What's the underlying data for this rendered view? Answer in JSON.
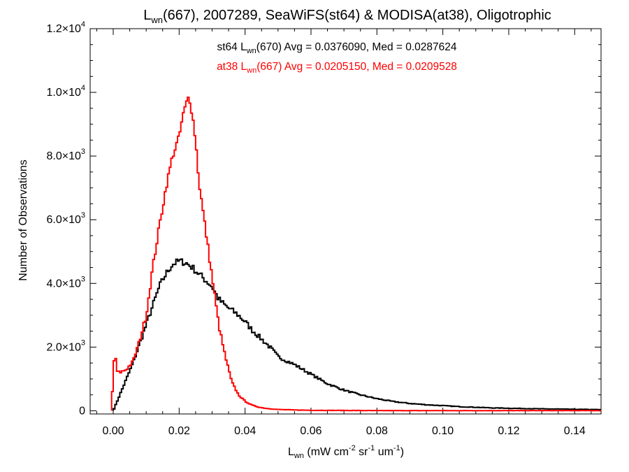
{
  "chart_data": {
    "type": "line",
    "title": {
      "pre": "L",
      "sub": "wn",
      "post": "(667), 2007289, SeaWiFS(st64) & MODISA(at38), Oligotrophic"
    },
    "xlabel": {
      "pre": "L",
      "sub": "wn",
      "mid1": " (mW cm",
      "sup1": "-2",
      "mid2": " sr",
      "sup2": "-1",
      "mid3": " um",
      "sup3": "-1",
      "post": ")"
    },
    "ylabel": "Number of Observations",
    "xlim": [
      -0.007,
      0.148
    ],
    "ylim": [
      -100,
      12000
    ],
    "x_ticks": [
      {
        "value": 0.0,
        "label": "0.00"
      },
      {
        "value": 0.02,
        "label": "0.02"
      },
      {
        "value": 0.04,
        "label": "0.04"
      },
      {
        "value": 0.06,
        "label": "0.06"
      },
      {
        "value": 0.08,
        "label": "0.08"
      },
      {
        "value": 0.1,
        "label": "0.10"
      },
      {
        "value": 0.12,
        "label": "0.12"
      },
      {
        "value": 0.14,
        "label": "0.14"
      }
    ],
    "y_ticks": [
      {
        "value": 0,
        "mant": "0",
        "exp": ""
      },
      {
        "value": 2000,
        "mant": "2.0×10",
        "exp": "3"
      },
      {
        "value": 4000,
        "mant": "4.0×10",
        "exp": "3"
      },
      {
        "value": 6000,
        "mant": "6.0×10",
        "exp": "3"
      },
      {
        "value": 8000,
        "mant": "8.0×10",
        "exp": "3"
      },
      {
        "value": 10000,
        "mant": "1.0×10",
        "exp": "4"
      },
      {
        "value": 12000,
        "mant": "1.2×10",
        "exp": "4"
      }
    ],
    "annotations": [
      {
        "color": "#000000",
        "pre": "st64 L",
        "sub": "wn",
        "post": "(670) Avg = 0.0376090, Med = 0.0287624"
      },
      {
        "color": "#ff0000",
        "pre": "at38 L",
        "sub": "wn",
        "post": "(667) Avg = 0.0205150, Med = 0.0209528"
      }
    ],
    "series": [
      {
        "color": "#000000",
        "x": [
          0.0,
          0.002,
          0.004,
          0.006,
          0.008,
          0.01,
          0.012,
          0.014,
          0.016,
          0.018,
          0.02,
          0.022,
          0.024,
          0.026,
          0.028,
          0.03,
          0.032,
          0.034,
          0.036,
          0.038,
          0.04,
          0.042,
          0.044,
          0.046,
          0.048,
          0.05,
          0.055,
          0.06,
          0.065,
          0.07,
          0.075,
          0.08,
          0.085,
          0.09,
          0.095,
          0.1,
          0.105,
          0.11,
          0.115,
          0.12,
          0.125,
          0.13,
          0.135,
          0.14,
          0.145,
          0.148
        ],
        "y": [
          0,
          500,
          1000,
          1500,
          2100,
          2700,
          3300,
          3900,
          4300,
          4600,
          4700,
          4650,
          4500,
          4300,
          4100,
          3900,
          3500,
          3300,
          3150,
          3000,
          2800,
          2550,
          2350,
          2150,
          1950,
          1700,
          1450,
          1150,
          850,
          650,
          500,
          380,
          290,
          230,
          190,
          160,
          130,
          110,
          90,
          80,
          70,
          60,
          55,
          45,
          40,
          35
        ]
      },
      {
        "color": "#ff0000",
        "x": [
          -0.0005,
          0.0,
          0.0005,
          0.001,
          0.002,
          0.004,
          0.006,
          0.008,
          0.01,
          0.012,
          0.014,
          0.016,
          0.018,
          0.02,
          0.021,
          0.022,
          0.023,
          0.024,
          0.025,
          0.026,
          0.028,
          0.03,
          0.032,
          0.034,
          0.036,
          0.038,
          0.04,
          0.042,
          0.044,
          0.046,
          0.048,
          0.05,
          0.055,
          0.06,
          0.07,
          0.08,
          0.1,
          0.148
        ],
        "y": [
          0,
          1200,
          1950,
          1250,
          1200,
          1300,
          1550,
          2200,
          3000,
          4500,
          5800,
          7000,
          8000,
          8600,
          9200,
          9600,
          9900,
          9300,
          8500,
          7200,
          5700,
          4200,
          2700,
          1700,
          900,
          500,
          300,
          180,
          120,
          80,
          60,
          40,
          25,
          15,
          10,
          5,
          5,
          5
        ]
      }
    ]
  }
}
